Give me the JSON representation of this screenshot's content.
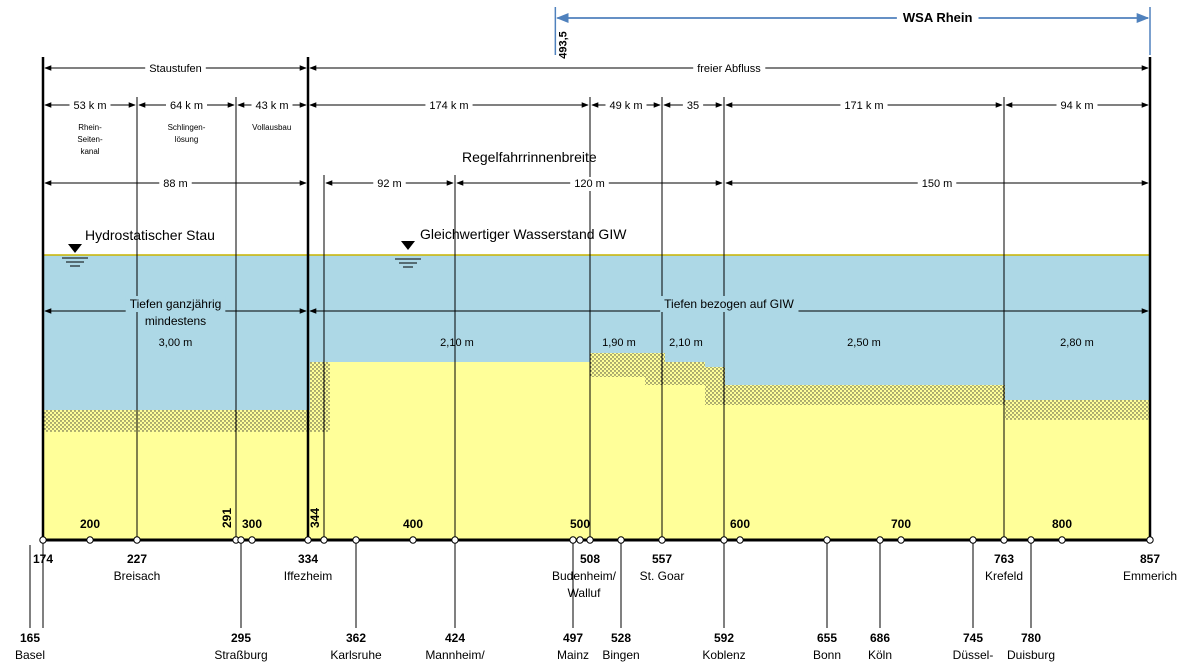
{
  "colors": {
    "water": "#add8e6",
    "ground": "#ffff99",
    "border": "#c8b400",
    "wsa": "#4f81bd",
    "axis": "#000000"
  },
  "wsa": {
    "label": "WSA Rhein",
    "start_km": "493,5"
  },
  "regimes": [
    {
      "label": "Staustufen",
      "from": 174,
      "to": 334
    },
    {
      "label": "freier Abfluss",
      "from": 334,
      "to": 857
    }
  ],
  "lengths": [
    {
      "label": "53 k m",
      "from": 174,
      "to": 227
    },
    {
      "label": "64 k m",
      "from": 227,
      "to": 291
    },
    {
      "label": "43 k m",
      "from": 291,
      "to": 334
    },
    {
      "label": "174 k m",
      "from": 334,
      "to": 508
    },
    {
      "label": "49 k m",
      "from": 508,
      "to": 557
    },
    {
      "label": "35",
      "from": 557,
      "to": 592
    },
    {
      "label": "171 k m",
      "from": 592,
      "to": 763
    },
    {
      "label": "94 k m",
      "from": 763,
      "to": 857
    }
  ],
  "section_notes": [
    {
      "text": [
        "Rhein-",
        "Seiten-",
        "kanal"
      ],
      "at": 200
    },
    {
      "text": [
        "Schlingen-",
        "lösung"
      ],
      "at": 259
    },
    {
      "text": [
        "Vollausbau"
      ],
      "at": 312
    }
  ],
  "width_title": "Regelfahrrinnenbreite",
  "widths": [
    {
      "label": "88 m",
      "from": 174,
      "to": 334
    },
    {
      "label": "92 m",
      "from": 344,
      "to": 424
    },
    {
      "label": "120 m",
      "from": 424,
      "to": 592
    },
    {
      "label": "150 m",
      "from": 592,
      "to": 857
    }
  ],
  "stau_labels": {
    "hydro": "Hydrostatischer Stau",
    "giw": "Gleichwertiger Wasserstand GIW"
  },
  "depth_headers": [
    {
      "lines": [
        "Tiefen ganzjährig",
        "mindestens"
      ],
      "from": 174,
      "to": 334
    },
    {
      "lines": [
        "Tiefen bezogen auf GIW"
      ],
      "from": 334,
      "to": 857
    }
  ],
  "depths": [
    {
      "label": "3,00 m",
      "from": 174,
      "to": 334
    },
    {
      "label": "2,10 m",
      "from": 344,
      "to": 508
    },
    {
      "label": "1,90 m",
      "from": 508,
      "to": 547
    },
    {
      "label": "2,10 m",
      "from": 547,
      "to": 592
    },
    {
      "label": "2,50 m",
      "from": 592,
      "to": 763
    },
    {
      "label": "2,80 m",
      "from": 763,
      "to": 857
    }
  ],
  "km_ticks": [
    "200",
    "300",
    "400",
    "500",
    "600",
    "700",
    "800"
  ],
  "vertical_km": [
    "291",
    "344"
  ],
  "places_upper": [
    {
      "km": "174",
      "name": "Basel-start",
      "name_label": ""
    },
    {
      "km": "227",
      "name_label": "Breisach"
    },
    {
      "km": "334",
      "name_label": "Iffezheim"
    },
    {
      "km": "508",
      "name_label": "Budenheim/"
    },
    {
      "km": "557",
      "name_label": "St. Goar"
    },
    {
      "km": "763",
      "name_label": "Krefeld"
    },
    {
      "km": "857",
      "name_label": "Emmerich"
    }
  ],
  "walluf": "Walluf",
  "places_lower": [
    {
      "km": "165",
      "name_label": "Basel"
    },
    {
      "km": "295",
      "name_label": "Straßburg"
    },
    {
      "km": "362",
      "name_label": "Karlsruhe"
    },
    {
      "km": "424",
      "name_label": "Mannheim/"
    },
    {
      "km": "497",
      "name_label": "Mainz"
    },
    {
      "km": "528",
      "name_label": "Bingen"
    },
    {
      "km": "592",
      "name_label": "Koblenz"
    },
    {
      "km": "655",
      "name_label": "Bonn"
    },
    {
      "km": "686",
      "name_label": "Köln"
    },
    {
      "km": "745",
      "name_label": "Düssel-"
    },
    {
      "km": "780",
      "name_label": "Duisburg"
    }
  ]
}
